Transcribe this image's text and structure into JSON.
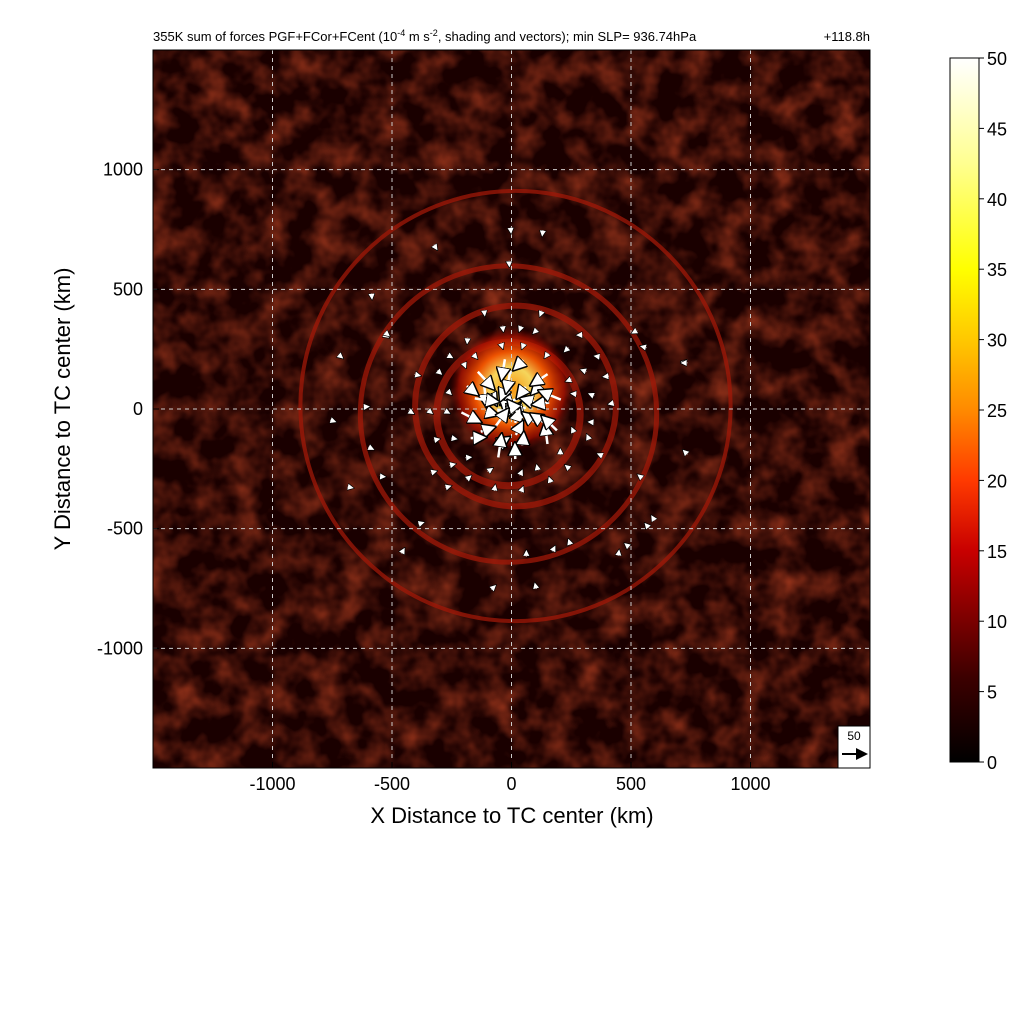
{
  "chart_data": {
    "type": "heatmap",
    "title": "355K sum of forces PGF+FCor+FCent (10",
    "title_exp": "-4",
    "title_mid": " m s",
    "title_exp2": "-2",
    "title_rest": ", shading and vectors); min SLP= 936.74hPa",
    "valid_time": "+118.8h",
    "xlabel": "X Distance to TC center (km)",
    "ylabel": "Y Distance to TC center (km)",
    "xlim": [
      -1500,
      1500
    ],
    "ylim": [
      -1500,
      1500
    ],
    "xticks": [
      -1000,
      -500,
      0,
      500,
      1000
    ],
    "yticks": [
      -1000,
      -500,
      0,
      500,
      1000
    ],
    "grid": true,
    "colorbar": {
      "min": 0,
      "max": 50,
      "ticks": [
        0,
        5,
        10,
        15,
        20,
        25,
        30,
        35,
        40,
        45,
        50
      ],
      "colormap": "hot"
    },
    "reference_vector": {
      "label": "50",
      "magnitude": 50
    },
    "field_description_values": {
      "core_max": 50,
      "ring_radii_km": [
        300,
        420,
        620,
        900
      ]
    },
    "colors": {
      "background_dark": "#1a0000",
      "ring": "#a01808",
      "core_hot": "#ffd21e",
      "vector": "#ffffff"
    }
  }
}
